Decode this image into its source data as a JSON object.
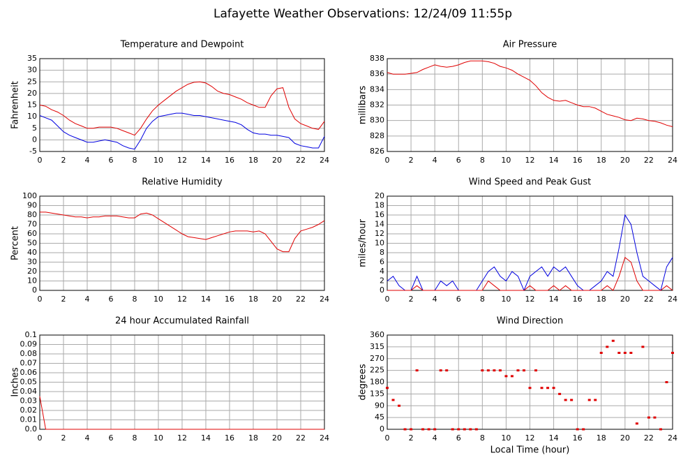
{
  "title": "Lafayette Weather Observations: 12/24/09 11:55p",
  "chart_data": [
    {
      "type": "line",
      "title": "Temperature and Dewpoint",
      "y_label": "Fahrenheit",
      "x": [
        0,
        0.5,
        1,
        1.5,
        2,
        2.5,
        3,
        3.5,
        4,
        4.5,
        5,
        5.5,
        6,
        6.5,
        7,
        7.5,
        8,
        8.5,
        9,
        9.5,
        10,
        10.5,
        11,
        11.5,
        12,
        12.5,
        13,
        13.5,
        14,
        14.5,
        15,
        15.5,
        16,
        16.5,
        17,
        17.5,
        18,
        18.5,
        19,
        19.5,
        20,
        20.5,
        21,
        21.5,
        22,
        22.5,
        23,
        23.5,
        24
      ],
      "series": [
        {
          "color": "#e00000",
          "values": [
            15,
            14.5,
            13,
            12,
            10.5,
            8.5,
            7,
            6,
            5,
            5,
            5.5,
            5.5,
            5.5,
            5,
            4,
            3,
            2,
            5,
            9,
            12.5,
            15,
            17,
            19,
            21,
            22.5,
            24,
            24.8,
            25,
            24.5,
            23,
            21,
            20,
            19.5,
            18.5,
            17.5,
            16,
            15,
            14,
            14,
            19,
            22,
            22.5,
            14,
            9,
            7,
            6,
            5,
            4.5,
            8
          ]
        },
        {
          "color": "#0000e0",
          "values": [
            10.5,
            9.5,
            8.5,
            6,
            3.5,
            2,
            1,
            0,
            -1,
            -1,
            -0.5,
            0,
            -0.5,
            -1,
            -2.5,
            -3.5,
            -4,
            0,
            5,
            8,
            10,
            10.5,
            11,
            11.5,
            11.5,
            11,
            10.5,
            10.5,
            10,
            9.5,
            9,
            8.5,
            8,
            7.5,
            6.5,
            4.5,
            3,
            2.5,
            2.5,
            2,
            2,
            1.5,
            1,
            -1.5,
            -2.5,
            -3,
            -3.5,
            -3.5,
            1.5
          ]
        }
      ],
      "xlim": [
        0,
        24
      ],
      "xticks": [
        0,
        2,
        4,
        6,
        8,
        10,
        12,
        14,
        16,
        18,
        20,
        22,
        24
      ],
      "ylim": [
        -5,
        35
      ],
      "yticks": [
        -5,
        0,
        5,
        10,
        15,
        20,
        25,
        30,
        35
      ],
      "grid": true
    },
    {
      "type": "line",
      "title": "Air Pressure",
      "y_label": "millibars",
      "x": [
        0,
        0.5,
        1,
        1.5,
        2,
        2.5,
        3,
        3.5,
        4,
        4.5,
        5,
        5.5,
        6,
        6.5,
        7,
        7.5,
        8,
        8.5,
        9,
        9.5,
        10,
        10.5,
        11,
        11.5,
        12,
        12.5,
        13,
        13.5,
        14,
        14.5,
        15,
        15.5,
        16,
        16.5,
        17,
        17.5,
        18,
        18.5,
        19,
        19.5,
        20,
        20.5,
        21,
        21.5,
        22,
        22.5,
        23,
        23.5,
        24
      ],
      "series": [
        {
          "color": "#e00000",
          "values": [
            836.2,
            836,
            836,
            836,
            836.1,
            836.2,
            836.6,
            836.9,
            837.2,
            837,
            836.9,
            837,
            837.2,
            837.5,
            837.7,
            837.7,
            837.7,
            837.6,
            837.4,
            837,
            836.8,
            836.5,
            836,
            835.6,
            835.2,
            834.5,
            833.6,
            833,
            832.6,
            832.5,
            832.6,
            832.3,
            832,
            831.8,
            831.8,
            831.6,
            831.2,
            830.8,
            830.6,
            830.4,
            830.1,
            830,
            830.3,
            830.2,
            830,
            829.9,
            829.7,
            829.4,
            829.2
          ]
        }
      ],
      "xlim": [
        0,
        24
      ],
      "xticks": [
        0,
        2,
        4,
        6,
        8,
        10,
        12,
        14,
        16,
        18,
        20,
        22,
        24
      ],
      "ylim": [
        826,
        838
      ],
      "yticks": [
        826,
        828,
        830,
        832,
        834,
        836,
        838
      ],
      "grid": true
    },
    {
      "type": "line",
      "title": "Relative Humidity",
      "y_label": "Percent",
      "x": [
        0,
        0.5,
        1,
        1.5,
        2,
        2.5,
        3,
        3.5,
        4,
        4.5,
        5,
        5.5,
        6,
        6.5,
        7,
        7.5,
        8,
        8.5,
        9,
        9.5,
        10,
        10.5,
        11,
        11.5,
        12,
        12.5,
        13,
        13.5,
        14,
        14.5,
        15,
        15.5,
        16,
        16.5,
        17,
        17.5,
        18,
        18.5,
        19,
        19.5,
        20,
        20.5,
        21,
        21.5,
        22,
        22.5,
        23,
        23.5,
        24
      ],
      "series": [
        {
          "color": "#e00000",
          "values": [
            83,
            83,
            82,
            81,
            80,
            79,
            78,
            78,
            77,
            78,
            78,
            79,
            79,
            79,
            78,
            77,
            77,
            81,
            82,
            80,
            76,
            72,
            68,
            64,
            60,
            57,
            56,
            55,
            54,
            56,
            58,
            60,
            62,
            63,
            63,
            63,
            62,
            63,
            60,
            52,
            44,
            41,
            41,
            55,
            63,
            65,
            67,
            70,
            74
          ]
        }
      ],
      "xlim": [
        0,
        24
      ],
      "xticks": [
        0,
        2,
        4,
        6,
        8,
        10,
        12,
        14,
        16,
        18,
        20,
        22,
        24
      ],
      "ylim": [
        0,
        100
      ],
      "yticks": [
        0,
        10,
        20,
        30,
        40,
        50,
        60,
        70,
        80,
        90,
        100
      ],
      "grid": true
    },
    {
      "type": "line",
      "title": "Wind Speed and Peak Gust",
      "y_label": "miles/hour",
      "x": [
        0,
        0.5,
        1,
        1.5,
        2,
        2.5,
        3,
        3.5,
        4,
        4.5,
        5,
        5.5,
        6,
        6.5,
        7,
        7.5,
        8,
        8.5,
        9,
        9.5,
        10,
        10.5,
        11,
        11.5,
        12,
        12.5,
        13,
        13.5,
        14,
        14.5,
        15,
        15.5,
        16,
        16.5,
        17,
        17.5,
        18,
        18.5,
        19,
        19.5,
        20,
        20.5,
        21,
        21.5,
        22,
        22.5,
        23,
        23.5,
        24
      ],
      "series": [
        {
          "color": "#0000e0",
          "values": [
            2,
            3,
            1,
            0,
            0,
            3,
            0,
            0,
            0,
            2,
            1,
            2,
            0,
            0,
            0,
            0,
            2,
            4,
            5,
            3,
            2,
            4,
            3,
            0,
            3,
            4,
            5,
            3,
            5,
            4,
            5,
            3,
            1,
            0,
            0,
            1,
            2,
            4,
            3,
            9,
            16,
            14,
            8,
            3,
            2,
            1,
            0,
            5,
            7
          ]
        },
        {
          "color": "#e00000",
          "values": [
            0,
            0,
            0,
            0,
            0,
            1,
            0,
            0,
            0,
            0,
            0,
            0,
            0,
            0,
            0,
            0,
            0,
            2,
            1,
            0,
            0,
            0,
            0,
            0,
            1,
            0,
            0,
            0,
            1,
            0,
            1,
            0,
            0,
            0,
            0,
            0,
            0,
            1,
            0,
            3,
            7,
            6,
            2,
            0,
            0,
            0,
            0,
            1,
            0
          ]
        }
      ],
      "xlim": [
        0,
        24
      ],
      "xticks": [
        0,
        2,
        4,
        6,
        8,
        10,
        12,
        14,
        16,
        18,
        20,
        22,
        24
      ],
      "ylim": [
        0,
        20
      ],
      "yticks": [
        0,
        2,
        4,
        6,
        8,
        10,
        12,
        14,
        16,
        18,
        20
      ],
      "grid": true
    },
    {
      "type": "line",
      "title": "24 hour Accumulated Rainfall",
      "y_label": "Inches",
      "x": [
        0,
        0.5,
        1,
        1.5,
        2,
        2.5,
        3,
        3.5,
        4,
        4.5,
        5,
        5.5,
        6,
        6.5,
        7,
        7.5,
        8,
        8.5,
        9,
        9.5,
        10,
        10.5,
        11,
        11.5,
        12,
        12.5,
        13,
        13.5,
        14,
        14.5,
        15,
        15.5,
        16,
        16.5,
        17,
        17.5,
        18,
        18.5,
        19,
        19.5,
        20,
        20.5,
        21,
        21.5,
        22,
        22.5,
        23,
        23.5,
        24
      ],
      "series": [
        {
          "color": "#e00000",
          "values": [
            0.035,
            0,
            0,
            0,
            0,
            0,
            0,
            0,
            0,
            0,
            0,
            0,
            0,
            0,
            0,
            0,
            0,
            0,
            0,
            0,
            0,
            0,
            0,
            0,
            0,
            0,
            0,
            0,
            0,
            0,
            0,
            0,
            0,
            0,
            0,
            0,
            0,
            0,
            0,
            0,
            0,
            0,
            0,
            0,
            0,
            0,
            0,
            0,
            0
          ]
        }
      ],
      "xlim": [
        0,
        24
      ],
      "xticks": [
        0,
        2,
        4,
        6,
        8,
        10,
        12,
        14,
        16,
        18,
        20,
        22,
        24
      ],
      "ylim": [
        0,
        0.1
      ],
      "yticks": [
        {
          "value": 0,
          "label": "0.0"
        },
        0.01,
        0.02,
        0.03,
        0.04,
        0.05,
        0.06,
        0.07,
        0.08,
        0.09,
        0.1
      ],
      "grid": true
    },
    {
      "type": "scatter",
      "title": "Wind Direction",
      "y_label": "degrees",
      "x_label": "Local Time (hour)",
      "x": [
        0,
        0.5,
        1,
        1.5,
        2,
        2.5,
        3,
        3.5,
        4,
        4.5,
        5,
        5.5,
        6,
        6.5,
        7,
        7.5,
        8,
        8.5,
        9,
        9.5,
        10,
        10.5,
        11,
        11.5,
        12,
        12.5,
        13,
        13.5,
        14,
        14.5,
        15,
        15.5,
        16,
        16.5,
        17,
        17.5,
        18,
        18.5,
        19,
        19.5,
        20,
        20.5,
        21,
        21.5,
        22,
        22.5,
        23,
        23.5,
        24
      ],
      "series": [
        {
          "color": "#e00000",
          "values": [
            158,
            112,
            90,
            0,
            0,
            225,
            0,
            0,
            0,
            225,
            225,
            0,
            0,
            0,
            0,
            0,
            225,
            225,
            225,
            225,
            203,
            203,
            225,
            225,
            158,
            225,
            158,
            158,
            158,
            135,
            112,
            112,
            0,
            0,
            112,
            112,
            292,
            315,
            338,
            292,
            292,
            292,
            22,
            315,
            45,
            45,
            0,
            180,
            292
          ]
        }
      ],
      "xlim": [
        0,
        24
      ],
      "xticks": [
        0,
        2,
        4,
        6,
        8,
        10,
        12,
        14,
        16,
        18,
        20,
        22,
        24
      ],
      "ylim": [
        0,
        360
      ],
      "yticks": [
        0,
        45,
        90,
        135,
        180,
        225,
        270,
        315,
        360
      ],
      "grid": true
    }
  ]
}
